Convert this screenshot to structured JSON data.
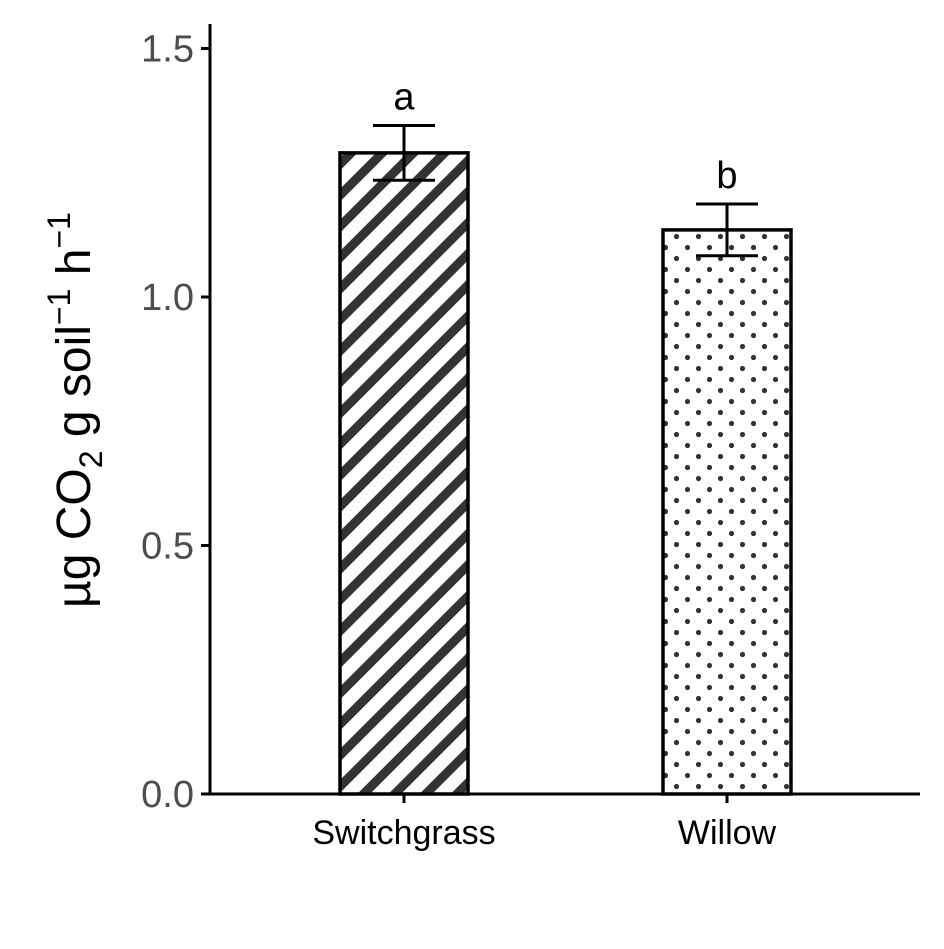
{
  "chart_data": {
    "type": "bar",
    "title": "",
    "xlabel": "",
    "ylabel": {
      "parts": [
        {
          "text": "µg CO",
          "style": "normal"
        },
        {
          "text": "2",
          "style": "sub"
        },
        {
          "text": " g soil",
          "style": "normal"
        },
        {
          "text": "−1",
          "style": "sup"
        },
        {
          "text": " h",
          "style": "normal"
        },
        {
          "text": "−1",
          "style": "sup"
        }
      ]
    },
    "ylim": [
      0,
      1.55
    ],
    "yticks": [
      0.0,
      0.5,
      1.0,
      1.5
    ],
    "ytick_labels": [
      "0.0",
      "0.5",
      "1.0",
      "1.5"
    ],
    "categories": [
      "Switchgrass",
      "Willow"
    ],
    "values": [
      1.29,
      1.135
    ],
    "errors": [
      0.055,
      0.052
    ],
    "significance_labels": [
      "a",
      "b"
    ],
    "patterns": [
      "diagonal-stripes",
      "dots"
    ],
    "colors": {
      "fill": "#ffffff",
      "pattern": "#333333",
      "outline": "#000000",
      "tick_text": "#4d4d4d"
    },
    "grid": false,
    "legend": "none"
  }
}
